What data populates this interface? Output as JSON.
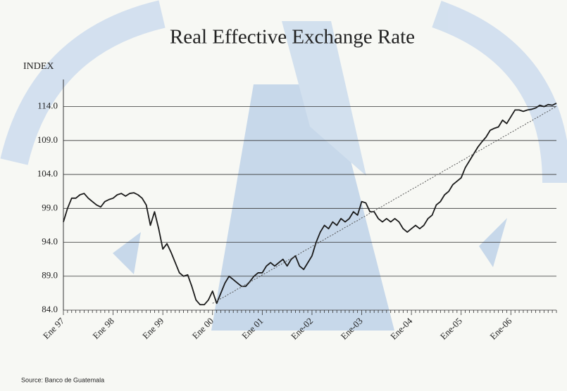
{
  "chart_data": {
    "type": "line",
    "title": "Real Effective Exchange Rate",
    "y_label": "INDEX",
    "source": "Source: Banco de Guatemala",
    "categories": [
      "Ene 97",
      null,
      null,
      null,
      null,
      null,
      null,
      null,
      null,
      null,
      null,
      null,
      "Ene 98",
      null,
      null,
      null,
      null,
      null,
      null,
      null,
      null,
      null,
      null,
      null,
      "Ene 99",
      null,
      null,
      null,
      null,
      null,
      null,
      null,
      null,
      null,
      null,
      null,
      "Ene 00",
      null,
      null,
      null,
      null,
      null,
      null,
      null,
      null,
      null,
      null,
      null,
      "Ene 01",
      null,
      null,
      null,
      null,
      null,
      null,
      null,
      null,
      null,
      null,
      null,
      "Ene-02",
      null,
      null,
      null,
      null,
      null,
      null,
      null,
      null,
      null,
      null,
      null,
      "Ene-03",
      null,
      null,
      null,
      null,
      null,
      null,
      null,
      null,
      null,
      null,
      null,
      "Ene-04",
      null,
      null,
      null,
      null,
      null,
      null,
      null,
      null,
      null,
      null,
      null,
      "Ene-05",
      null,
      null,
      null,
      null,
      null,
      null,
      null,
      null,
      null,
      null,
      null,
      "Ene-06",
      null,
      null,
      null,
      null,
      null,
      null,
      null,
      null,
      null,
      null,
      null
    ],
    "series": [
      {
        "color": "#1a1a1a",
        "style": "solid",
        "values": [
          97.0,
          99.0,
          100.5,
          100.5,
          101.0,
          101.2,
          100.5,
          100.0,
          99.5,
          99.2,
          100.0,
          100.3,
          100.5,
          101.0,
          101.2,
          100.8,
          101.2,
          101.3,
          101.0,
          100.5,
          99.5,
          96.5,
          98.5,
          96.0,
          93.0,
          93.8,
          92.5,
          91.0,
          89.5,
          89.0,
          89.2,
          87.5,
          85.5,
          84.8,
          84.8,
          85.5,
          86.8,
          85.0,
          86.5,
          88.0,
          89.0,
          88.5,
          88.0,
          87.5,
          87.5,
          88.2,
          89.0,
          89.5,
          89.5,
          90.5,
          91.0,
          90.5,
          91.0,
          91.5,
          90.5,
          91.5,
          92.0,
          90.5,
          90.0,
          91.0,
          92.0,
          94.0,
          95.5,
          96.5,
          96.0,
          97.0,
          96.5,
          97.5,
          97.0,
          97.5,
          98.5,
          98.0,
          100.0,
          99.8,
          98.5,
          98.5,
          97.5,
          97.0,
          97.5,
          97.0,
          97.5,
          97.0,
          96.0,
          95.5,
          96.0,
          96.5,
          96.0,
          96.5,
          97.5,
          98.0,
          99.5,
          100.0,
          101.0,
          101.5,
          102.5,
          103.0,
          103.5,
          105.0,
          106.0,
          107.0,
          108.0,
          108.8,
          109.5,
          110.5,
          110.8,
          111.0,
          112.0,
          111.5,
          112.5,
          113.5,
          113.5,
          113.3,
          113.5,
          113.6,
          113.8,
          114.2,
          114.0,
          114.3,
          114.2,
          114.5
        ]
      },
      {
        "color": "#555555",
        "style": "dotted",
        "values": [
          null,
          null,
          null,
          null,
          null,
          null,
          null,
          null,
          null,
          null,
          null,
          null,
          null,
          null,
          null,
          null,
          null,
          null,
          null,
          null,
          null,
          null,
          null,
          null,
          null,
          null,
          null,
          null,
          null,
          null,
          null,
          null,
          null,
          null,
          null,
          null,
          85.0,
          85.3,
          85.7,
          86.0,
          86.4,
          86.7,
          87.1,
          87.4,
          87.8,
          88.1,
          88.5,
          88.8,
          89.2,
          89.5,
          89.9,
          90.2,
          90.6,
          90.9,
          91.3,
          91.6,
          92.0,
          92.3,
          92.7,
          93.0,
          93.4,
          93.7,
          94.1,
          94.4,
          94.8,
          95.1,
          95.5,
          95.8,
          96.2,
          96.5,
          96.9,
          97.2,
          97.6,
          97.9,
          98.3,
          98.6,
          99.0,
          99.3,
          99.7,
          100.0,
          100.4,
          100.7,
          101.1,
          101.4,
          101.8,
          102.1,
          102.5,
          102.8,
          103.2,
          103.5,
          103.9,
          104.2,
          104.6,
          104.9,
          105.3,
          105.6,
          106.0,
          106.3,
          106.7,
          107.0,
          107.4,
          107.7,
          108.1,
          108.4,
          108.8,
          109.1,
          109.5,
          109.8,
          110.2,
          110.5,
          110.9,
          111.2,
          111.6,
          111.9,
          112.3,
          112.6,
          113.0,
          113.3,
          113.7,
          114.0
        ]
      }
    ],
    "ylim": [
      84,
      118
    ],
    "yticks": [
      {
        "value": 84,
        "label": "84.0"
      },
      {
        "value": 89,
        "label": "89.0"
      },
      {
        "value": 94,
        "label": "94.0"
      },
      {
        "value": 99,
        "label": "99.0"
      },
      {
        "value": 104,
        "label": "104.0"
      },
      {
        "value": 109,
        "label": "109.0"
      },
      {
        "value": 114,
        "label": "114.0"
      }
    ],
    "grid": true
  }
}
